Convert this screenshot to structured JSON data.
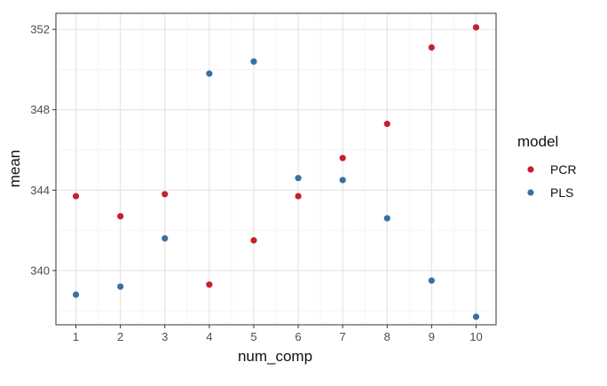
{
  "chart_data": {
    "type": "scatter",
    "title": "",
    "xlabel": "num_comp",
    "ylabel": "mean",
    "x": [
      1,
      2,
      3,
      4,
      5,
      6,
      7,
      8,
      9,
      10
    ],
    "xticks": [
      "1",
      "2",
      "3",
      "4",
      "5",
      "6",
      "7",
      "8",
      "9",
      "10"
    ],
    "yticks": [
      340,
      344,
      348,
      352
    ],
    "xlim": [
      0.55,
      10.45
    ],
    "ylim": [
      337.3,
      352.8
    ],
    "grid": true,
    "legend": {
      "title": "model",
      "placement": "right"
    },
    "series": [
      {
        "name": "PCR",
        "color": "#c8202a",
        "values": [
          343.7,
          342.7,
          343.8,
          339.3,
          341.5,
          343.7,
          345.6,
          347.3,
          351.1,
          352.1
        ]
      },
      {
        "name": "PLS",
        "color": "#3a6fa5",
        "values": [
          338.8,
          339.2,
          341.6,
          349.8,
          350.4,
          344.6,
          344.5,
          342.6,
          339.5,
          337.7
        ]
      }
    ]
  }
}
